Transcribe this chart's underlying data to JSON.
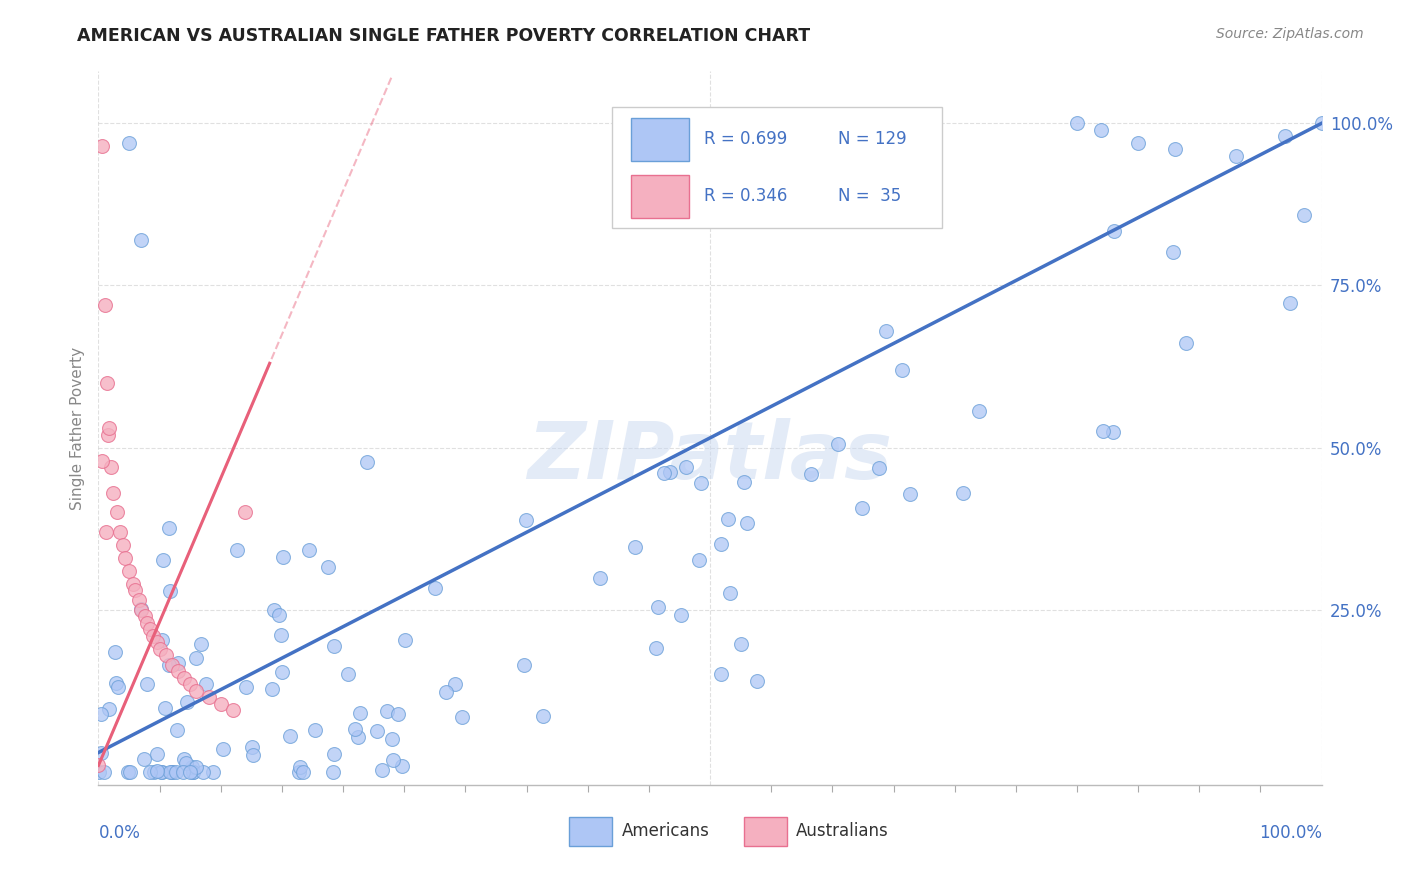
{
  "title": "AMERICAN VS AUSTRALIAN SINGLE FATHER POVERTY CORRELATION CHART",
  "source": "Source: ZipAtlas.com",
  "ylabel": "Single Father Poverty",
  "x_range": [
    0,
    1
  ],
  "y_range": [
    -0.02,
    1.08
  ],
  "R_american": 0.699,
  "N_american": 129,
  "R_australian": 0.346,
  "N_australian": 35,
  "color_american": "#aec6f5",
  "color_american_edge": "#6a9fd8",
  "color_american_line": "#4472c4",
  "color_australian": "#f5b0c0",
  "color_australian_edge": "#e87090",
  "color_australian_line": "#e8607a",
  "watermark_color": "#c8d8f0",
  "background_color": "#ffffff",
  "grid_color": "#cccccc",
  "title_color": "#222222",
  "axis_tick_color": "#4472c4",
  "ylabel_color": "#888888",
  "source_color": "#888888",
  "legend_border_color": "#cccccc",
  "legend_text_color": "#333333",
  "legend_value_color": "#4472c4"
}
